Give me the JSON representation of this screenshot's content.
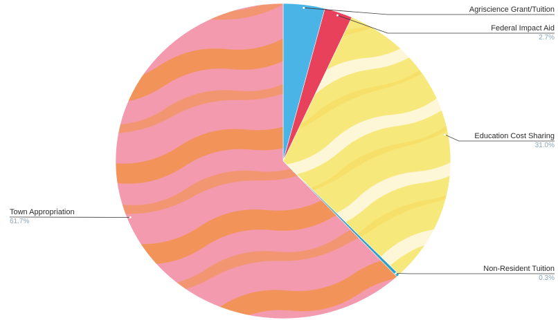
{
  "chart_data": {
    "type": "pie",
    "title": "",
    "start_angle_deg": 0,
    "direction": "clockwise",
    "slices": [
      {
        "label": "Agriscience Grant/Tuition",
        "value": 4.0,
        "display_pct": "",
        "color": "#4ab4e6",
        "texture": "none",
        "label_side": "right"
      },
      {
        "label": "Federal Impact Aid",
        "value": 2.7,
        "display_pct": "2.7%",
        "color": "#e8415c",
        "texture": "none",
        "label_side": "right"
      },
      {
        "label": "Education Cost Sharing",
        "value": 31.0,
        "display_pct": "31.0%",
        "color": "#f6e87a",
        "texture": "cream",
        "label_side": "right"
      },
      {
        "label": "Non-Resident Tuition",
        "value": 0.3,
        "display_pct": "0.3%",
        "color": "#2aa1c9",
        "texture": "none",
        "label_side": "right"
      },
      {
        "label": "Town Appropriation",
        "value": 61.7,
        "display_pct": "61.7%",
        "color": "#f39aae",
        "texture": "orange",
        "label_side": "left"
      }
    ]
  }
}
